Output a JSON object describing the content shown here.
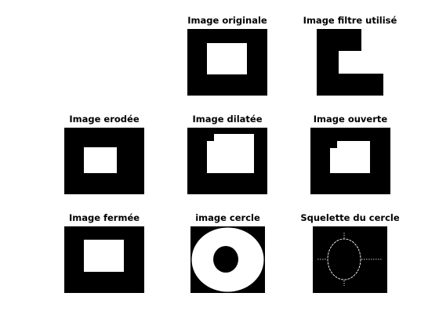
{
  "figure": {
    "background": "#ffffff",
    "foreground_color": "#000000",
    "shape_color": "#ffffff",
    "panels": [
      {
        "id": "originale",
        "title": "Image originale",
        "shape": "rectangle"
      },
      {
        "id": "filtre",
        "title": "Image filtre utilisé",
        "shape": "L-structuring-element"
      },
      {
        "id": "erodee",
        "title": "Image erodée",
        "shape": "rectangle-eroded"
      },
      {
        "id": "dilatee",
        "title": "Image dilatée",
        "shape": "rectangle-dilated"
      },
      {
        "id": "ouverte",
        "title": "Image ouverte",
        "shape": "rectangle-opened"
      },
      {
        "id": "fermee",
        "title": "Image fermée",
        "shape": "rectangle-closed"
      },
      {
        "id": "cercle",
        "title": "image cercle",
        "shape": "ring"
      },
      {
        "id": "squelette",
        "title": "Squelette du cercle",
        "shape": "ring-skeleton"
      }
    ]
  }
}
